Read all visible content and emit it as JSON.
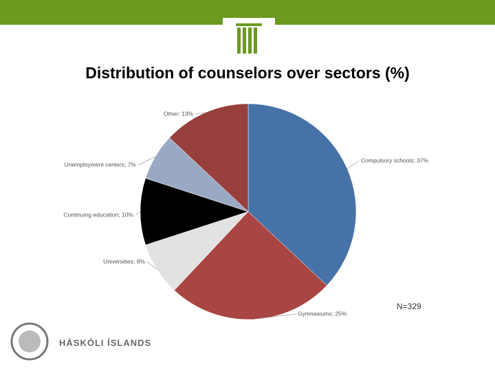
{
  "chart_data": {
    "type": "pie",
    "title": "Distribution of counselors over sectors (%)",
    "values": [
      37,
      25,
      8,
      10,
      7,
      13
    ],
    "value_labels": [
      "Compulsory schools; 37%",
      "Gymnasiums; 25%",
      "Universities; 8%",
      "Continuing education; 10%",
      "Unemployment centers; 7%",
      "Other; 13%"
    ],
    "colors": [
      "#4672a7",
      "#a94543",
      "#e2e2e2",
      "#000000",
      "#9aa9c3",
      "#963f3c"
    ],
    "annotation": "N=329"
  },
  "footer": {
    "logo_text": "HÁSKÓLI ÍSLANDS"
  }
}
